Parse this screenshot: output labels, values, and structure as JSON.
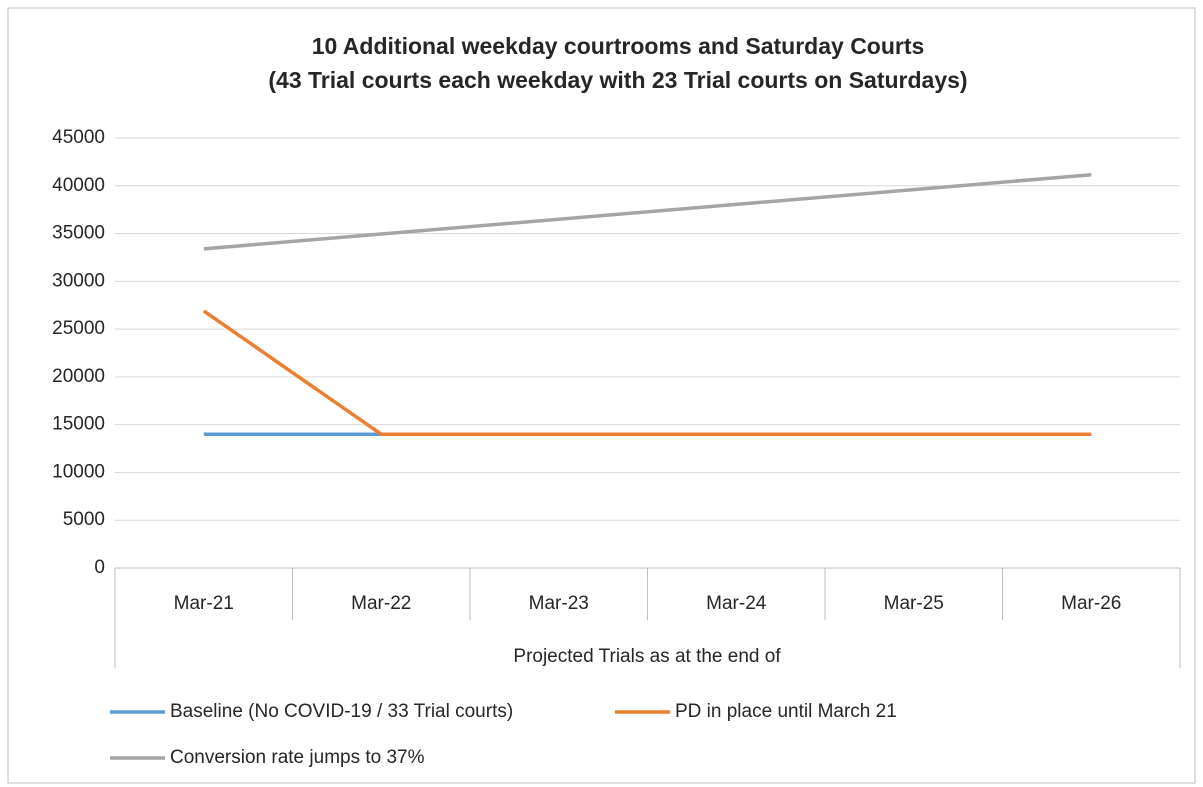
{
  "chart_data": {
    "type": "line",
    "title": "10 Additional weekday courtrooms and Saturday Courts",
    "subtitle": "(43 Trial courts each weekday with 23 Trial courts on Saturdays)",
    "x_label": "Projected Trials as at the end of",
    "categories": [
      "Mar-21",
      "Mar-22",
      "Mar-23",
      "Mar-24",
      "Mar-25",
      "Mar-26"
    ],
    "series": [
      {
        "name": "Baseline (No COVID-19 /  33 Trial courts)",
        "color": "#5b9bd5",
        "values": [
          14000,
          14000,
          14000,
          14000,
          14000,
          14000
        ]
      },
      {
        "name": "PD in place until March 21",
        "color": "#ed7d31",
        "values": [
          26900,
          14000,
          14000,
          14000,
          14000,
          14000
        ]
      },
      {
        "name": "Conversion rate jumps to 37%",
        "color": "#a5a5a5",
        "values": [
          33400,
          34950,
          36500,
          38050,
          39600,
          41150
        ]
      }
    ],
    "ylim": [
      0,
      45000
    ],
    "yticks": [
      0,
      5000,
      10000,
      15000,
      20000,
      25000,
      30000,
      35000,
      40000,
      45000
    ],
    "grid": true,
    "legend": "bottom"
  }
}
